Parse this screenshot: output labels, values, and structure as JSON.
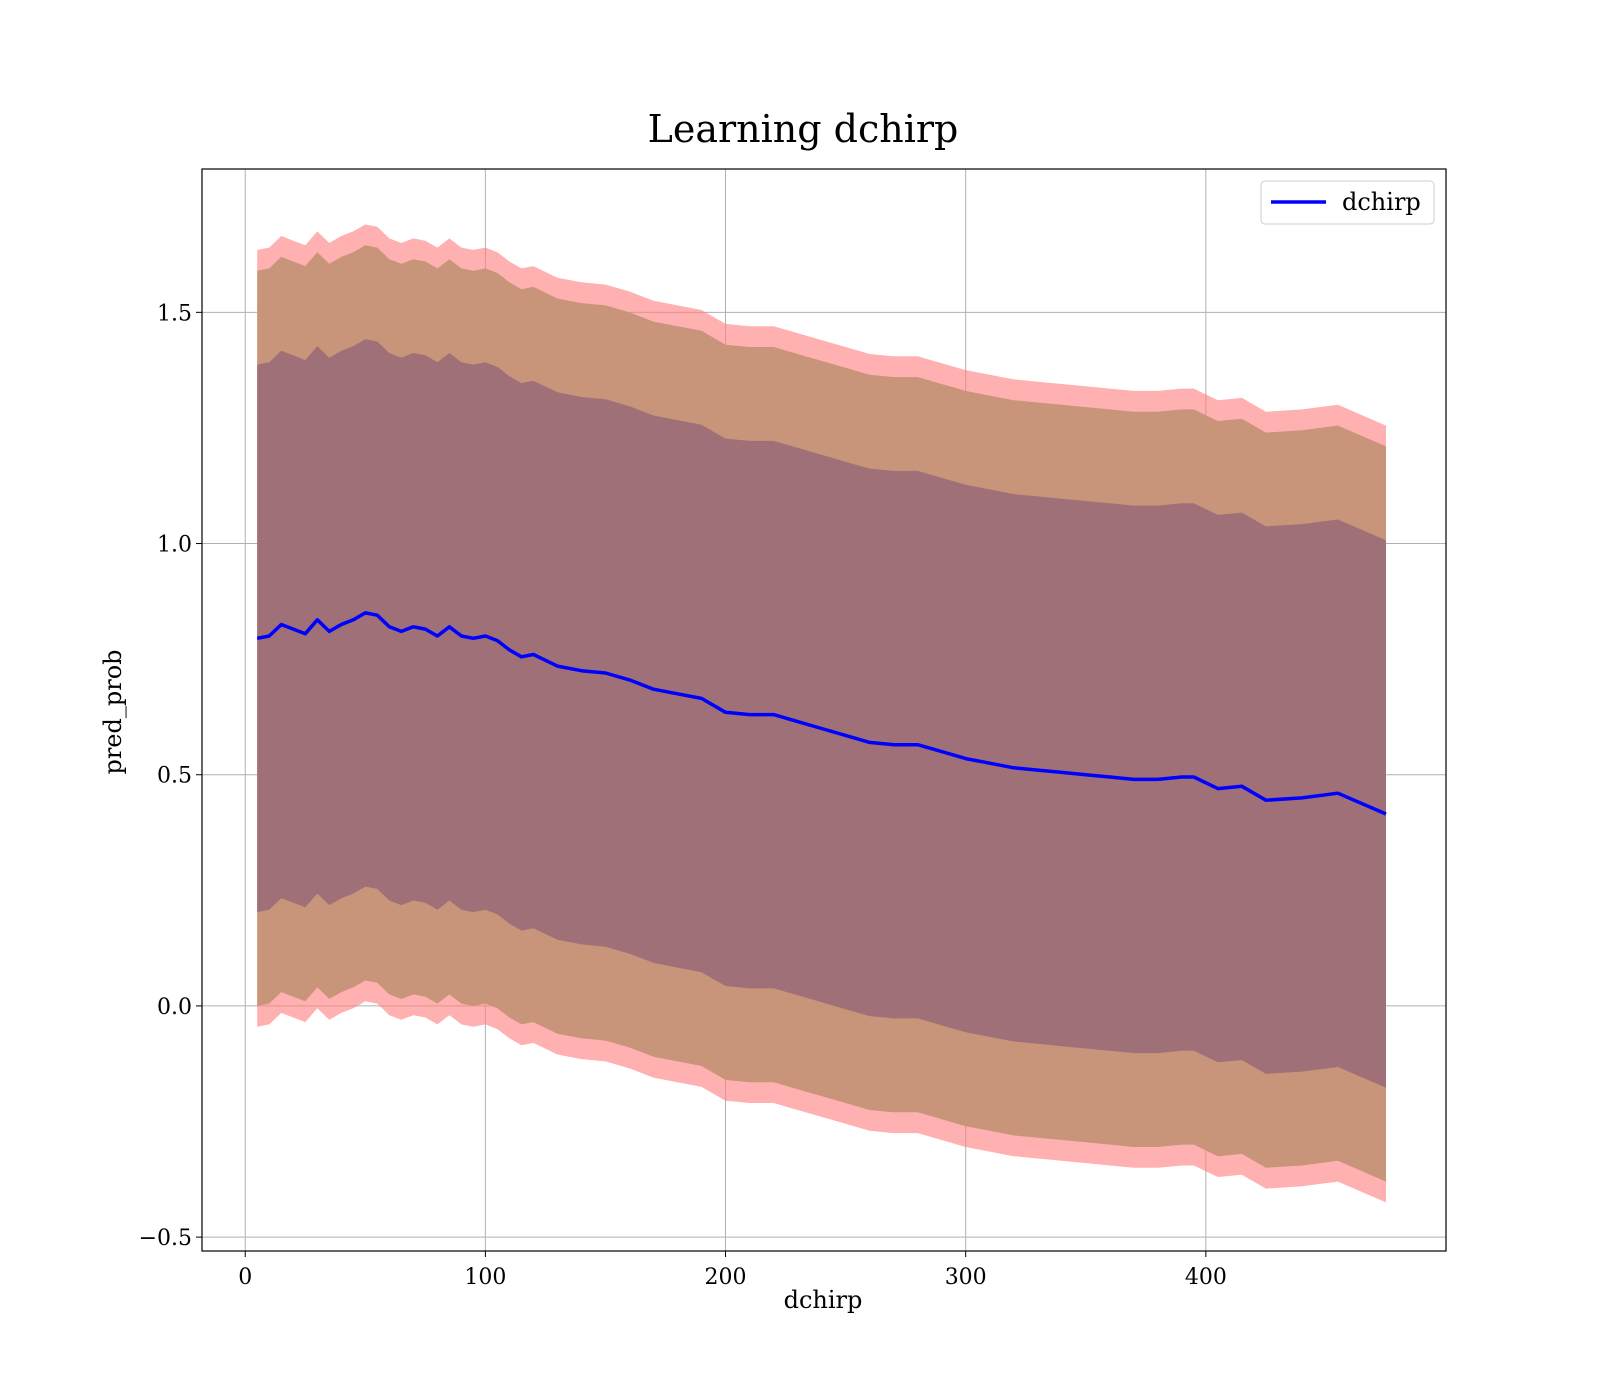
{
  "chart_data": {
    "type": "line",
    "title": "Learning dchirp",
    "xlabel": "dchirp",
    "ylabel": "pred_prob",
    "xlim": [
      -18,
      500
    ],
    "ylim": [
      -0.53,
      1.81
    ],
    "xticks": [
      0,
      100,
      200,
      300,
      400
    ],
    "xtick_labels": [
      "0",
      "100",
      "200",
      "300",
      "400"
    ],
    "yticks": [
      -0.5,
      0.0,
      0.5,
      1.0,
      1.5
    ],
    "ytick_labels": [
      "−0.5",
      "0.0",
      "0.5",
      "1.0",
      "1.5"
    ],
    "grid": true,
    "legend_position": "upper right",
    "colors": {
      "line": "#0000ff",
      "band_outer": "#ff8080",
      "band_middle": "#c8957a",
      "band_inner": "#a07078",
      "grid": "#b0b0b0"
    },
    "x": [
      5,
      10,
      15,
      20,
      25,
      30,
      35,
      40,
      45,
      50,
      55,
      60,
      65,
      70,
      75,
      80,
      85,
      90,
      95,
      100,
      105,
      110,
      115,
      120,
      130,
      140,
      150,
      160,
      170,
      180,
      190,
      200,
      210,
      220,
      230,
      240,
      250,
      260,
      270,
      280,
      290,
      300,
      310,
      320,
      330,
      340,
      350,
      360,
      370,
      380,
      390,
      395,
      405,
      415,
      425,
      440,
      455,
      475
    ],
    "series": [
      {
        "name": "dchirp",
        "values": [
          0.795,
          0.8,
          0.825,
          0.815,
          0.805,
          0.835,
          0.81,
          0.825,
          0.835,
          0.85,
          0.845,
          0.82,
          0.81,
          0.82,
          0.815,
          0.8,
          0.82,
          0.8,
          0.795,
          0.8,
          0.79,
          0.77,
          0.755,
          0.76,
          0.735,
          0.725,
          0.72,
          0.705,
          0.685,
          0.675,
          0.665,
          0.635,
          0.63,
          0.63,
          0.615,
          0.6,
          0.585,
          0.57,
          0.565,
          0.565,
          0.55,
          0.535,
          0.525,
          0.515,
          0.51,
          0.505,
          0.5,
          0.495,
          0.49,
          0.49,
          0.495,
          0.495,
          0.47,
          0.475,
          0.445,
          0.45,
          0.46,
          0.415
        ]
      }
    ],
    "bands": [
      {
        "name": "outer",
        "lower_offset": -0.84,
        "upper_offset": 0.84
      },
      {
        "name": "middle",
        "lower_offset": -0.795,
        "upper_offset": 0.795
      },
      {
        "name": "inner",
        "lower_offset": -0.592,
        "upper_offset": 0.592
      }
    ]
  }
}
